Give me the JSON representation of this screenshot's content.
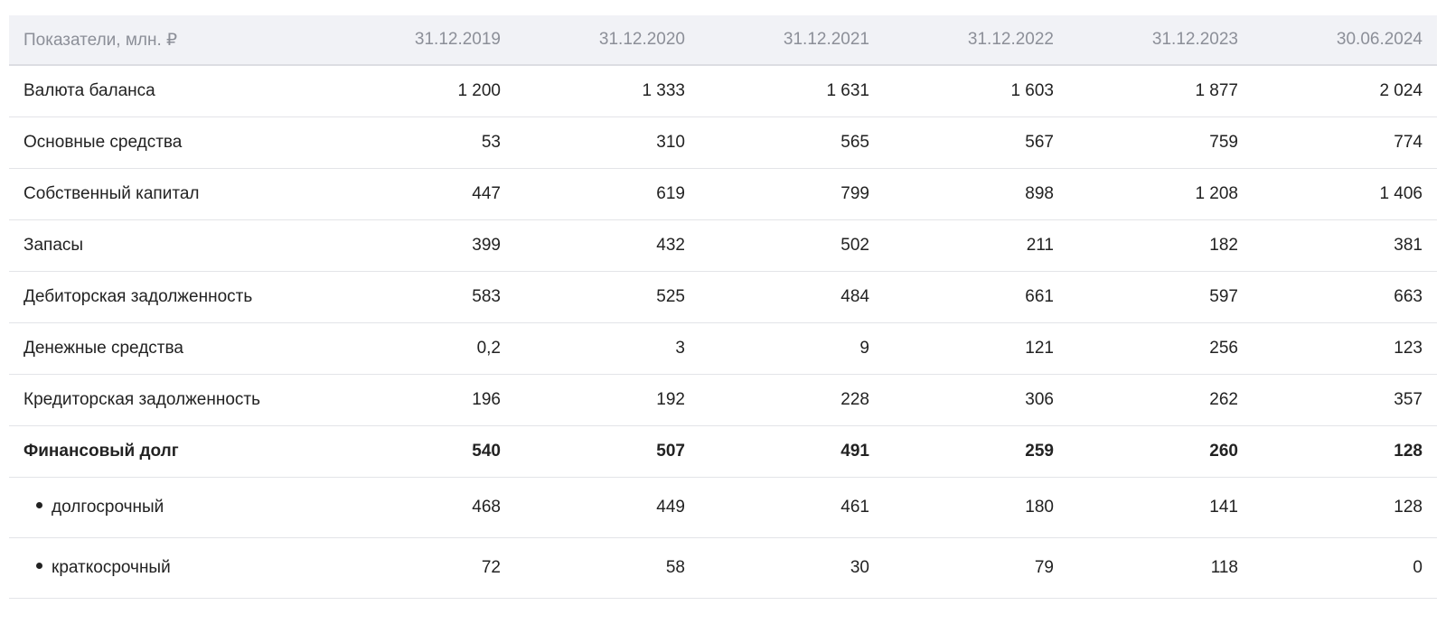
{
  "table": {
    "headers": [
      "Показатели, млн. ₽",
      "31.12.2019",
      "31.12.2020",
      "31.12.2021",
      "31.12.2022",
      "31.12.2023",
      "30.06.2024"
    ],
    "rows": [
      {
        "label": "Валюта баланса",
        "values": [
          "1 200",
          "1 333",
          "1 631",
          "1 603",
          "1 877",
          "2 024"
        ]
      },
      {
        "label": "Основные средства",
        "values": [
          "53",
          "310",
          "565",
          "567",
          "759",
          "774"
        ]
      },
      {
        "label": "Собственный капитал",
        "values": [
          "447",
          "619",
          "799",
          "898",
          "1 208",
          "1 406"
        ]
      },
      {
        "label": "Запасы",
        "values": [
          "399",
          "432",
          "502",
          "211",
          "182",
          "381"
        ]
      },
      {
        "label": "Дебиторская задолженность",
        "values": [
          "583",
          "525",
          "484",
          "661",
          "597",
          "663"
        ]
      },
      {
        "label": "Денежные средства",
        "values": [
          "0,2",
          "3",
          "9",
          "121",
          "256",
          "123"
        ]
      },
      {
        "label": "Кредиторская задолженность",
        "values": [
          "196",
          "192",
          "228",
          "306",
          "262",
          "357"
        ]
      },
      {
        "label": "Финансовый долг",
        "values": [
          "540",
          "507",
          "491",
          "259",
          "260",
          "128"
        ]
      },
      {
        "label": "долгосрочный",
        "values": [
          "468",
          "449",
          "461",
          "180",
          "141",
          "128"
        ]
      },
      {
        "label": "краткосрочный",
        "values": [
          "72",
          "58",
          "30",
          "79",
          "118",
          "0"
        ]
      }
    ]
  }
}
